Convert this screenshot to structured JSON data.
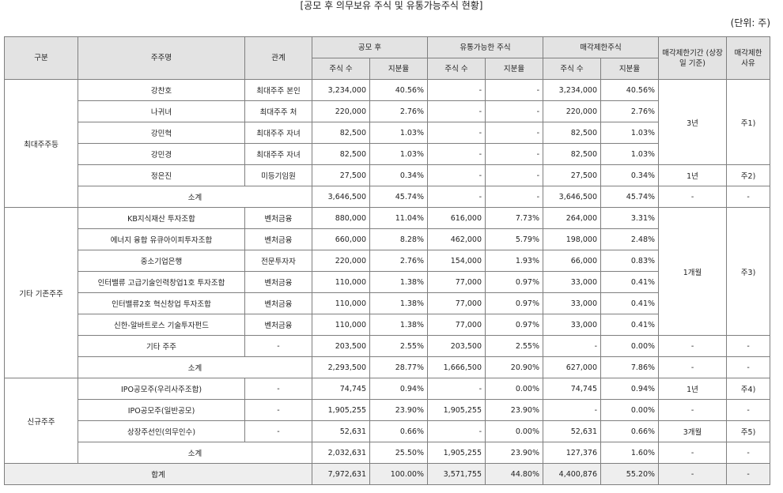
{
  "title": "[공모 후 의무보유 주식 및 유통가능주식 현황]",
  "unit": "(단위: 주)",
  "headers": {
    "category": "구분",
    "holder": "주주명",
    "relation": "관계",
    "post_ipo": "공모 후",
    "tradable": "유통가능한 주식",
    "restricted": "매각제한주식",
    "period": "매각제한기간 (상장일 기준)",
    "reason": "매각제한 사유",
    "shares": "주식 수",
    "ratio": "지분율"
  },
  "groups": {
    "major": "최대주주등",
    "existing": "기타 기존주주",
    "new": "신규주주"
  },
  "rows": [
    {
      "holder": "강찬호",
      "relation": "최대주주 본인",
      "s1": "3,234,000",
      "r1": "40.56%",
      "s2": "-",
      "r2": "-",
      "s3": "3,234,000",
      "r3": "40.56%"
    },
    {
      "holder": "나귀녀",
      "relation": "최대주주 처",
      "s1": "220,000",
      "r1": "2.76%",
      "s2": "-",
      "r2": "-",
      "s3": "220,000",
      "r3": "2.76%"
    },
    {
      "holder": "강민혁",
      "relation": "최대주주 자녀",
      "s1": "82,500",
      "r1": "1.03%",
      "s2": "-",
      "r2": "-",
      "s3": "82,500",
      "r3": "1.03%"
    },
    {
      "holder": "강민경",
      "relation": "최대주주 자녀",
      "s1": "82,500",
      "r1": "1.03%",
      "s2": "-",
      "r2": "-",
      "s3": "82,500",
      "r3": "1.03%"
    },
    {
      "holder": "정은진",
      "relation": "미등기임원",
      "s1": "27,500",
      "r1": "0.34%",
      "s2": "-",
      "r2": "-",
      "s3": "27,500",
      "r3": "0.34%",
      "period": "1년",
      "reason": "주2)"
    },
    {
      "holder": "소계",
      "s1": "3,646,500",
      "r1": "45.74%",
      "s2": "-",
      "r2": "-",
      "s3": "3,646,500",
      "r3": "45.74%",
      "period": "-",
      "reason": "-"
    },
    {
      "holder": "KB지식재산 투자조합",
      "relation": "벤처금융",
      "s1": "880,000",
      "r1": "11.04%",
      "s2": "616,000",
      "r2": "7.73%",
      "s3": "264,000",
      "r3": "3.31%"
    },
    {
      "holder": "에너지 융합 유큐아이피투자조합",
      "relation": "벤처금융",
      "s1": "660,000",
      "r1": "8.28%",
      "s2": "462,000",
      "r2": "5.79%",
      "s3": "198,000",
      "r3": "2.48%"
    },
    {
      "holder": "중소기업은행",
      "relation": "전문투자자",
      "s1": "220,000",
      "r1": "2.76%",
      "s2": "154,000",
      "r2": "1.93%",
      "s3": "66,000",
      "r3": "0.83%"
    },
    {
      "holder": "인터밸류 고급기술인력창업1호 투자조합",
      "relation": "벤처금융",
      "s1": "110,000",
      "r1": "1.38%",
      "s2": "77,000",
      "r2": "0.97%",
      "s3": "33,000",
      "r3": "0.41%"
    },
    {
      "holder": "인터밸류2호 혁신창업 투자조합",
      "relation": "벤처금융",
      "s1": "110,000",
      "r1": "1.38%",
      "s2": "77,000",
      "r2": "0.97%",
      "s3": "33,000",
      "r3": "0.41%"
    },
    {
      "holder": "신한-알바트로스 기술투자펀드",
      "relation": "벤처금융",
      "s1": "110,000",
      "r1": "1.38%",
      "s2": "77,000",
      "r2": "0.97%",
      "s3": "33,000",
      "r3": "0.41%"
    },
    {
      "holder": "기타 주주",
      "relation": "-",
      "s1": "203,500",
      "r1": "2.55%",
      "s2": "203,500",
      "r2": "2.55%",
      "s3": "-",
      "r3": "0.00%",
      "period": "-",
      "reason": "-"
    },
    {
      "holder": "소계",
      "s1": "2,293,500",
      "r1": "28.77%",
      "s2": "1,666,500",
      "r2": "20.90%",
      "s3": "627,000",
      "r3": "7.86%",
      "period": "-",
      "reason": "-"
    },
    {
      "holder": "IPO공모주(우리사주조합)",
      "relation": "-",
      "s1": "74,745",
      "r1": "0.94%",
      "s2": "-",
      "r2": "0.00%",
      "s3": "74,745",
      "r3": "0.94%",
      "period": "1년",
      "reason": "주4)"
    },
    {
      "holder": "IPO공모주(일반공모)",
      "relation": "-",
      "s1": "1,905,255",
      "r1": "23.90%",
      "s2": "1,905,255",
      "r2": "23.90%",
      "s3": "-",
      "r3": "0.00%",
      "period": "-",
      "reason": "-"
    },
    {
      "holder": "상장주선인(의무인수)",
      "relation": "-",
      "s1": "52,631",
      "r1": "0.66%",
      "s2": "-",
      "r2": "0.00%",
      "s3": "52,631",
      "r3": "0.66%",
      "period": "3개월",
      "reason": "주5)"
    },
    {
      "holder": "소계",
      "s1": "2,032,631",
      "r1": "25.50%",
      "s2": "1,905,255",
      "r2": "23.90%",
      "s3": "127,376",
      "r3": "1.60%",
      "period": "-",
      "reason": "-"
    }
  ],
  "merged": {
    "major_period": "3년",
    "major_reason": "주1)",
    "existing_period": "1개월",
    "existing_reason": "주3)"
  },
  "total": {
    "label": "합계",
    "s1": "7,972,631",
    "r1": "100.00%",
    "s2": "3,571,755",
    "r2": "44.80%",
    "s3": "4,400,876",
    "r3": "55.20%",
    "period": "-",
    "reason": "-"
  }
}
